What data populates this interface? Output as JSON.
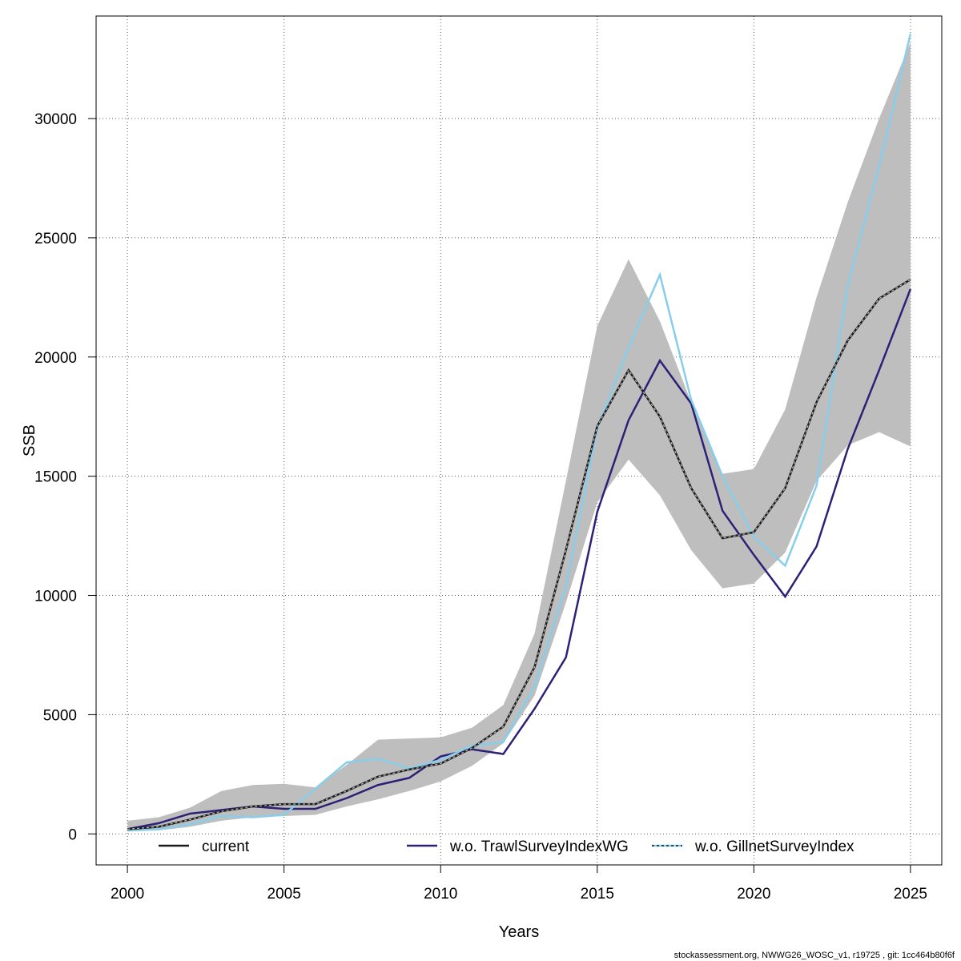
{
  "chart_data": {
    "type": "line",
    "title": "",
    "xlabel": "Years",
    "ylabel": "SSB",
    "xlim": [
      1999,
      2026
    ],
    "ylim": [
      -1300,
      34300
    ],
    "x_ticks": [
      2000,
      2005,
      2010,
      2015,
      2020,
      2025
    ],
    "y_ticks": [
      0,
      5000,
      10000,
      15000,
      20000,
      25000,
      30000
    ],
    "grid": true,
    "legend_position": "bottom",
    "x": [
      2000,
      2001,
      2002,
      2003,
      2004,
      2005,
      2006,
      2007,
      2008,
      2009,
      2010,
      2011,
      2012,
      2013,
      2014,
      2015,
      2016,
      2017,
      2018,
      2019,
      2020,
      2021,
      2022,
      2023,
      2024,
      2025
    ],
    "band": {
      "color": "#bebebe",
      "lower": [
        100,
        150,
        300,
        550,
        700,
        750,
        800,
        1150,
        1450,
        1800,
        2200,
        2850,
        3800,
        5800,
        9700,
        13900,
        15700,
        14200,
        11900,
        10300,
        10500,
        11800,
        14800,
        16300,
        16850,
        16250
      ],
      "upper": [
        550,
        700,
        1100,
        1800,
        2050,
        2100,
        1950,
        2900,
        3950,
        4000,
        4050,
        4450,
        5400,
        8400,
        14800,
        21300,
        24100,
        21500,
        18100,
        15100,
        15300,
        17800,
        22500,
        26500,
        30000,
        33200
      ]
    },
    "series": [
      {
        "name": "current",
        "color": "#1a1a1a",
        "dash": "dashed-over-solid",
        "values": [
          200,
          300,
          600,
          950,
          1150,
          1250,
          1250,
          1800,
          2400,
          2700,
          2950,
          3600,
          4500,
          7000,
          11900,
          17100,
          19450,
          17500,
          14500,
          12400,
          12650,
          14500,
          18100,
          20700,
          22450,
          23250
        ]
      },
      {
        "name": "w.o. TrawlSurveyIndexWG",
        "color": "#2c2177",
        "dash": "solid",
        "values": [
          200,
          450,
          850,
          1000,
          1150,
          1050,
          1050,
          1500,
          2050,
          2350,
          3250,
          3550,
          3350,
          5250,
          7400,
          13500,
          17350,
          19850,
          18050,
          13550,
          11700,
          9950,
          12050,
          16150,
          19450,
          22850
        ]
      },
      {
        "name": "w.o. GillnetSurveyIndex",
        "color": "#87ceeb",
        "dash": "solid",
        "values": [
          150,
          200,
          400,
          750,
          700,
          800,
          1900,
          3000,
          3150,
          2750,
          3100,
          3700,
          3850,
          6200,
          10400,
          17000,
          20400,
          23450,
          18200,
          15000,
          12450,
          11250,
          14600,
          23000,
          28000,
          33550
        ]
      }
    ]
  },
  "footer": {
    "text": "stockassessment.org, NWWG26_WOSC_v1, r19725 , git: 1cc464b80f6f"
  }
}
